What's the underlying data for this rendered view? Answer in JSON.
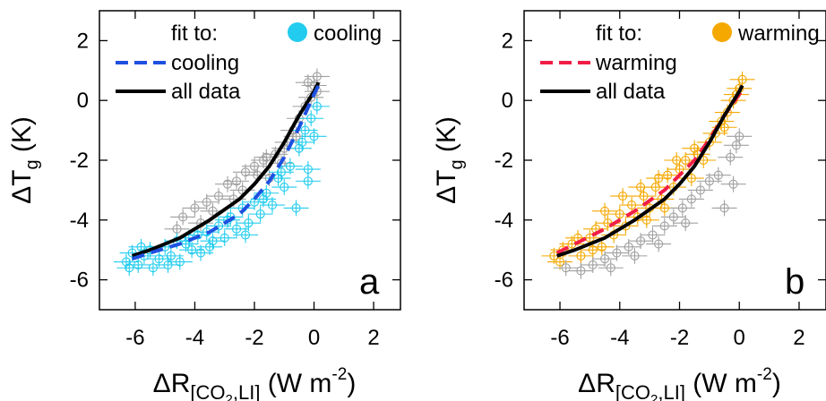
{
  "chart_data": [
    {
      "type": "scatter",
      "panel_letter": "a",
      "xlabel": {
        "main": "ΔR",
        "sub": "[CO",
        "sub2": "2",
        "sub3": ",LI]",
        "tail": " (W m",
        "sup": "-2",
        "close": ")"
      },
      "ylabel": {
        "main": "ΔT",
        "sub": "g",
        "tail": " (K)"
      },
      "xlim": [
        -7.2,
        2.9
      ],
      "ylim": [
        -7.0,
        3.0
      ],
      "x_ticks": [
        -6,
        -4,
        -2,
        0,
        2
      ],
      "y_ticks": [
        2,
        0,
        -2,
        -4,
        -6
      ],
      "x_tick_labels": [
        "-6",
        "-4",
        "-2",
        "0",
        "2"
      ],
      "y_tick_labels": [
        "2",
        "0",
        "-2",
        "-4",
        "-6"
      ],
      "grid": false,
      "legend_placement": "top",
      "legend": {
        "title": "fit to:",
        "dashed_label": "cooling",
        "solid_label": "all data",
        "marker_label": "cooling"
      },
      "highlight_color": "#22CCEE",
      "background_points_color": "#A0A0A0",
      "dashed_fit_color": "#1E50E0",
      "solid_fit_color": "#000000",
      "points_highlight": [
        [
          -6.3,
          -5.4
        ],
        [
          -6.1,
          -5.1
        ],
        [
          -5.9,
          -5.5
        ],
        [
          -5.7,
          -5.2
        ],
        [
          -5.5,
          -5.0
        ],
        [
          -5.4,
          -5.6
        ],
        [
          -5.2,
          -5.3
        ],
        [
          -5.0,
          -4.9
        ],
        [
          -4.8,
          -5.2
        ],
        [
          -4.6,
          -4.7
        ],
        [
          -4.5,
          -5.4
        ],
        [
          -4.3,
          -4.8
        ],
        [
          -4.1,
          -5.0
        ],
        [
          -3.9,
          -4.5
        ],
        [
          -3.8,
          -5.1
        ],
        [
          -3.6,
          -4.4
        ],
        [
          -3.4,
          -4.7
        ],
        [
          -3.2,
          -4.2
        ],
        [
          -3.0,
          -4.6
        ],
        [
          -2.8,
          -3.9
        ],
        [
          -2.6,
          -4.3
        ],
        [
          -2.4,
          -3.6
        ],
        [
          -2.2,
          -4.1
        ],
        [
          -2.0,
          -3.4
        ],
        [
          -1.8,
          -3.8
        ],
        [
          -1.6,
          -3.1
        ],
        [
          -1.4,
          -3.5
        ],
        [
          -1.2,
          -2.6
        ],
        [
          -1.0,
          -2.9
        ],
        [
          -0.8,
          -2.2
        ],
        [
          -0.6,
          -3.6
        ],
        [
          -0.5,
          -1.6
        ],
        [
          -0.3,
          -1.0
        ],
        [
          -0.2,
          -2.3
        ],
        [
          -0.1,
          -0.6
        ],
        [
          0.0,
          -1.2
        ],
        [
          0.1,
          -0.2
        ],
        [
          -0.2,
          -2.7
        ],
        [
          -4.9,
          -5.5
        ],
        [
          -3.5,
          -4.9
        ],
        [
          -2.9,
          -4.0
        ],
        [
          -2.3,
          -4.5
        ],
        [
          -1.7,
          -3.3
        ],
        [
          -5.8,
          -4.9
        ],
        [
          -4.2,
          -4.6
        ],
        [
          -1.1,
          -2.4
        ],
        [
          -0.4,
          -1.4
        ],
        [
          -6.2,
          -5.6
        ]
      ],
      "points_background": [
        [
          -4.4,
          -3.9
        ],
        [
          -4.0,
          -3.6
        ],
        [
          -3.6,
          -3.4
        ],
        [
          -3.2,
          -3.2
        ],
        [
          -2.9,
          -2.8
        ],
        [
          -2.6,
          -2.7
        ],
        [
          -2.3,
          -2.4
        ],
        [
          -2.0,
          -2.2
        ],
        [
          -1.7,
          -2.0
        ],
        [
          -1.5,
          -2.6
        ],
        [
          -1.3,
          -1.8
        ],
        [
          -1.1,
          -2.1
        ],
        [
          -0.9,
          -1.4
        ],
        [
          -0.7,
          -1.0
        ],
        [
          -0.5,
          -0.6
        ],
        [
          -0.3,
          -0.2
        ],
        [
          -0.1,
          0.1
        ],
        [
          0.0,
          0.5
        ],
        [
          0.1,
          0.8
        ],
        [
          -0.2,
          0.6
        ],
        [
          -3.8,
          -4.1
        ],
        [
          -2.4,
          -3.0
        ],
        [
          -1.9,
          -2.5
        ],
        [
          -3.4,
          -3.7
        ],
        [
          -0.6,
          -1.2
        ],
        [
          -2.7,
          -3.3
        ],
        [
          -4.6,
          -4.3
        ],
        [
          -1.6,
          -1.9
        ],
        [
          0.1,
          0.3
        ],
        [
          -1.0,
          -1.6
        ]
      ],
      "fit_dashed": [
        [
          -6.1,
          -5.3
        ],
        [
          -5.5,
          -5.1
        ],
        [
          -4.5,
          -4.8
        ],
        [
          -3.5,
          -4.4
        ],
        [
          -2.5,
          -3.8
        ],
        [
          -2.0,
          -3.3
        ],
        [
          -1.5,
          -2.7
        ],
        [
          -1.0,
          -1.9
        ],
        [
          -0.5,
          -0.9
        ],
        [
          0.0,
          0.2
        ],
        [
          0.15,
          0.5
        ]
      ],
      "fit_solid": [
        [
          -6.1,
          -5.2
        ],
        [
          -5.5,
          -5.0
        ],
        [
          -4.5,
          -4.6
        ],
        [
          -3.5,
          -4.0
        ],
        [
          -2.5,
          -3.3
        ],
        [
          -2.0,
          -2.8
        ],
        [
          -1.5,
          -2.2
        ],
        [
          -1.0,
          -1.4
        ],
        [
          -0.5,
          -0.5
        ],
        [
          0.0,
          0.3
        ],
        [
          0.15,
          0.6
        ]
      ]
    },
    {
      "type": "scatter",
      "panel_letter": "b",
      "xlabel": {
        "main": "ΔR",
        "sub": "[CO",
        "sub2": "2",
        "sub3": ",LI]",
        "tail": " (W m",
        "sup": "-2",
        "close": ")"
      },
      "ylabel": {
        "main": "ΔT",
        "sub": "g",
        "tail": " (K)"
      },
      "xlim": [
        -7.2,
        2.9
      ],
      "ylim": [
        -7.0,
        3.0
      ],
      "x_ticks": [
        -6,
        -4,
        -2,
        0,
        2
      ],
      "y_ticks": [
        2,
        0,
        -2,
        -4,
        -6
      ],
      "x_tick_labels": [
        "-6",
        "-4",
        "-2",
        "0",
        "2"
      ],
      "y_tick_labels": [
        "2",
        "0",
        "-2",
        "-4",
        "-6"
      ],
      "grid": false,
      "legend_placement": "top",
      "legend": {
        "title": "fit to:",
        "dashed_label": "warming",
        "solid_label": "all data",
        "marker_label": "warming"
      },
      "highlight_color": "#F5A800",
      "background_points_color": "#A0A0A0",
      "dashed_fit_color": "#F01E46",
      "solid_fit_color": "#000000",
      "points_highlight": [
        [
          -6.2,
          -5.2
        ],
        [
          -5.9,
          -5.0
        ],
        [
          -5.6,
          -4.8
        ],
        [
          -5.3,
          -5.2
        ],
        [
          -5.0,
          -4.6
        ],
        [
          -4.8,
          -4.3
        ],
        [
          -4.6,
          -4.9
        ],
        [
          -4.4,
          -4.1
        ],
        [
          -4.2,
          -4.5
        ],
        [
          -4.0,
          -3.8
        ],
        [
          -3.8,
          -4.2
        ],
        [
          -3.6,
          -3.5
        ],
        [
          -3.4,
          -3.9
        ],
        [
          -3.2,
          -3.2
        ],
        [
          -3.0,
          -3.6
        ],
        [
          -2.8,
          -2.9
        ],
        [
          -2.6,
          -3.3
        ],
        [
          -2.4,
          -2.5
        ],
        [
          -2.2,
          -2.9
        ],
        [
          -2.0,
          -2.3
        ],
        [
          -1.8,
          -2.0
        ],
        [
          -1.6,
          -2.6
        ],
        [
          -1.4,
          -1.8
        ],
        [
          -1.2,
          -2.0
        ],
        [
          -1.0,
          -1.4
        ],
        [
          -0.8,
          -1.1
        ],
        [
          -0.6,
          -0.7
        ],
        [
          -0.4,
          -0.4
        ],
        [
          -0.2,
          0.0
        ],
        [
          0.0,
          0.4
        ],
        [
          0.1,
          0.7
        ],
        [
          -0.1,
          0.2
        ],
        [
          -3.9,
          -3.2
        ],
        [
          -3.3,
          -2.9
        ],
        [
          -2.7,
          -2.6
        ],
        [
          -2.1,
          -2.0
        ],
        [
          -4.5,
          -3.7
        ],
        [
          -5.4,
          -4.6
        ],
        [
          -1.5,
          -1.6
        ],
        [
          -2.5,
          -3.6
        ],
        [
          -4.9,
          -5.0
        ],
        [
          -3.1,
          -4.0
        ],
        [
          -0.5,
          -0.9
        ],
        [
          -6.0,
          -5.4
        ]
      ],
      "points_background": [
        [
          -5.8,
          -5.6
        ],
        [
          -5.3,
          -5.7
        ],
        [
          -4.9,
          -5.5
        ],
        [
          -4.5,
          -5.3
        ],
        [
          -4.1,
          -5.1
        ],
        [
          -3.7,
          -4.9
        ],
        [
          -3.3,
          -4.7
        ],
        [
          -2.9,
          -4.5
        ],
        [
          -2.5,
          -4.2
        ],
        [
          -2.2,
          -3.9
        ],
        [
          -1.9,
          -3.6
        ],
        [
          -1.6,
          -3.3
        ],
        [
          -1.3,
          -3.0
        ],
        [
          -1.0,
          -2.7
        ],
        [
          -0.7,
          -2.5
        ],
        [
          -0.5,
          -3.6
        ],
        [
          -0.3,
          -1.9
        ],
        [
          -0.2,
          -2.8
        ],
        [
          -0.1,
          -1.5
        ],
        [
          0.0,
          -1.2
        ],
        [
          -4.3,
          -5.6
        ],
        [
          -3.5,
          -5.2
        ],
        [
          -2.7,
          -4.8
        ],
        [
          -1.8,
          -4.1
        ]
      ],
      "fit_dashed": [
        [
          -6.1,
          -5.1
        ],
        [
          -5.5,
          -4.8
        ],
        [
          -4.5,
          -4.3
        ],
        [
          -3.5,
          -3.7
        ],
        [
          -2.5,
          -3.0
        ],
        [
          -2.0,
          -2.5
        ],
        [
          -1.5,
          -2.0
        ],
        [
          -1.0,
          -1.3
        ],
        [
          -0.5,
          -0.5
        ],
        [
          0.0,
          0.2
        ],
        [
          0.1,
          0.4
        ]
      ],
      "fit_solid": [
        [
          -6.1,
          -5.2
        ],
        [
          -5.5,
          -5.0
        ],
        [
          -4.5,
          -4.6
        ],
        [
          -3.5,
          -4.0
        ],
        [
          -2.5,
          -3.3
        ],
        [
          -2.0,
          -2.8
        ],
        [
          -1.5,
          -2.2
        ],
        [
          -1.0,
          -1.4
        ],
        [
          -0.5,
          -0.5
        ],
        [
          0.0,
          0.3
        ],
        [
          0.1,
          0.5
        ]
      ]
    }
  ]
}
